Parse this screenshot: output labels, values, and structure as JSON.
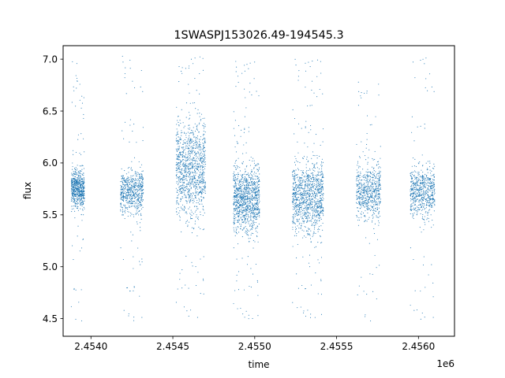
{
  "chart_data": {
    "type": "scatter",
    "title": "1SWASPJ153026.49-194545.3",
    "xlabel": "time",
    "ylabel": "flux",
    "x_offset_label": "1e6",
    "xlim": [
      2.45383,
      2.45622
    ],
    "ylim": [
      4.33,
      7.13
    ],
    "x_ticks": [
      2.454,
      2.4545,
      2.455,
      2.4555,
      2.456
    ],
    "x_tick_labels": [
      "2.4540",
      "2.4545",
      "2.4550",
      "2.4555",
      "2.4560"
    ],
    "y_ticks": [
      4.5,
      5.0,
      5.5,
      6.0,
      6.5,
      7.0
    ],
    "y_tick_labels": [
      "4.5",
      "5.0",
      "5.5",
      "6.0",
      "6.5",
      "7.0"
    ],
    "grid": false,
    "marker_color": "#1f77b4",
    "series": [
      {
        "clusters": [
          {
            "x_range": [
              2.45388,
              2.45396
            ],
            "core": [
              5.55,
              5.95
            ],
            "tails": [
              4.45,
              6.98
            ],
            "density": "medium"
          },
          {
            "x_range": [
              2.45418,
              2.45432
            ],
            "core": [
              5.5,
              5.95
            ],
            "tails": [
              4.45,
              7.03
            ],
            "density": "medium"
          },
          {
            "x_range": [
              2.45452,
              2.4547
            ],
            "core": [
              5.45,
              6.45
            ],
            "tails": [
              4.48,
              7.03
            ],
            "density": "high"
          },
          {
            "x_range": [
              2.45487,
              2.45503
            ],
            "core": [
              5.3,
              6.0
            ],
            "tails": [
              4.47,
              6.98
            ],
            "density": "high"
          },
          {
            "x_range": [
              2.45523,
              2.45542
            ],
            "core": [
              5.3,
              6.05
            ],
            "tails": [
              4.48,
              7.0
            ],
            "density": "high"
          },
          {
            "x_range": [
              2.45562,
              2.45577
            ],
            "core": [
              5.45,
              6.0
            ],
            "tails": [
              4.45,
              6.78
            ],
            "density": "medium"
          },
          {
            "x_range": [
              2.45595,
              2.4561
            ],
            "core": [
              5.45,
              6.0
            ],
            "tails": [
              4.45,
              7.03
            ],
            "density": "medium"
          }
        ]
      }
    ]
  }
}
